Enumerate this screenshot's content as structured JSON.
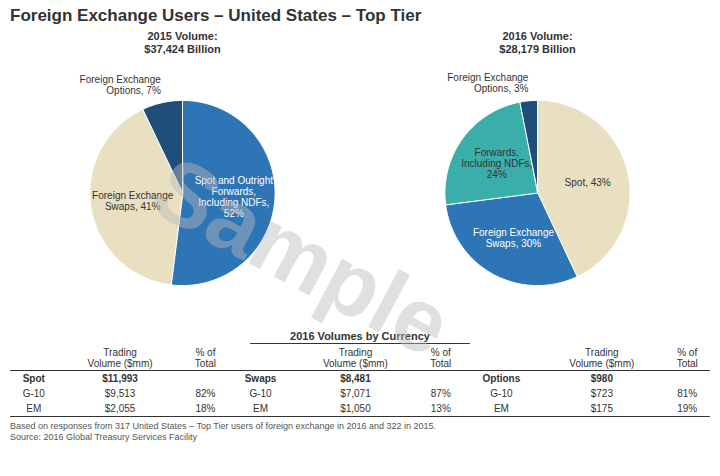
{
  "title": "Foreign Exchange Users – United States – Top Tier",
  "chart_data": [
    {
      "type": "pie",
      "title": "2015 Volume:\n$37,424 Billion",
      "categories": [
        "Spot and Outright\nForwards,\nIncluding NDFs,\n52%",
        "Foreign Exchange\nSwaps, 41%",
        "Foreign Exchange\nOptions, 7%"
      ],
      "values": [
        52,
        41,
        7
      ],
      "colors": [
        "#2E75B6",
        "#E8E0C0",
        "#1F4E79"
      ]
    },
    {
      "type": "pie",
      "title": "2016 Volume:\n$28,179 Billion",
      "categories": [
        "Spot, 43%",
        "Foreign Exchange\nSwaps, 30%",
        "Forwards,\nIncluding NDFs,\n24%",
        "Foreign Exchange\nOptions, 3%"
      ],
      "values": [
        43,
        30,
        24,
        3
      ],
      "colors": [
        "#E8E0C0",
        "#2E75B6",
        "#3AAFA9",
        "#1F4E79"
      ]
    },
    {
      "type": "table",
      "title": "2016 Volumes by Currency",
      "columns": [
        null,
        "Trading\nVolume ($mm)",
        "% of\nTotal",
        null,
        "Trading\nVolume ($mm)",
        "% of\nTotal",
        null,
        "Trading\nVolume ($mm)",
        "% of\nTotal"
      ],
      "rows": [
        [
          "Spot",
          "$11,993",
          null,
          "Swaps",
          "$8,481",
          null,
          "Options",
          "$980",
          null
        ],
        [
          "G-10",
          "$9,513",
          "82%",
          "G-10",
          "$7,071",
          "87%",
          "G-10",
          "$723",
          "81%"
        ],
        [
          "EM",
          "$2,055",
          "18%",
          "EM",
          "$1,050",
          "13%",
          "EM",
          "$175",
          "19%"
        ]
      ]
    }
  ],
  "footnotes": [
    "Based on responses from 317 United States – Top Tier users of foreign exchange in 2016 and 322 in 2015.",
    "Source: 2016 Global Treasury Services Facility"
  ],
  "watermark": "Sample"
}
